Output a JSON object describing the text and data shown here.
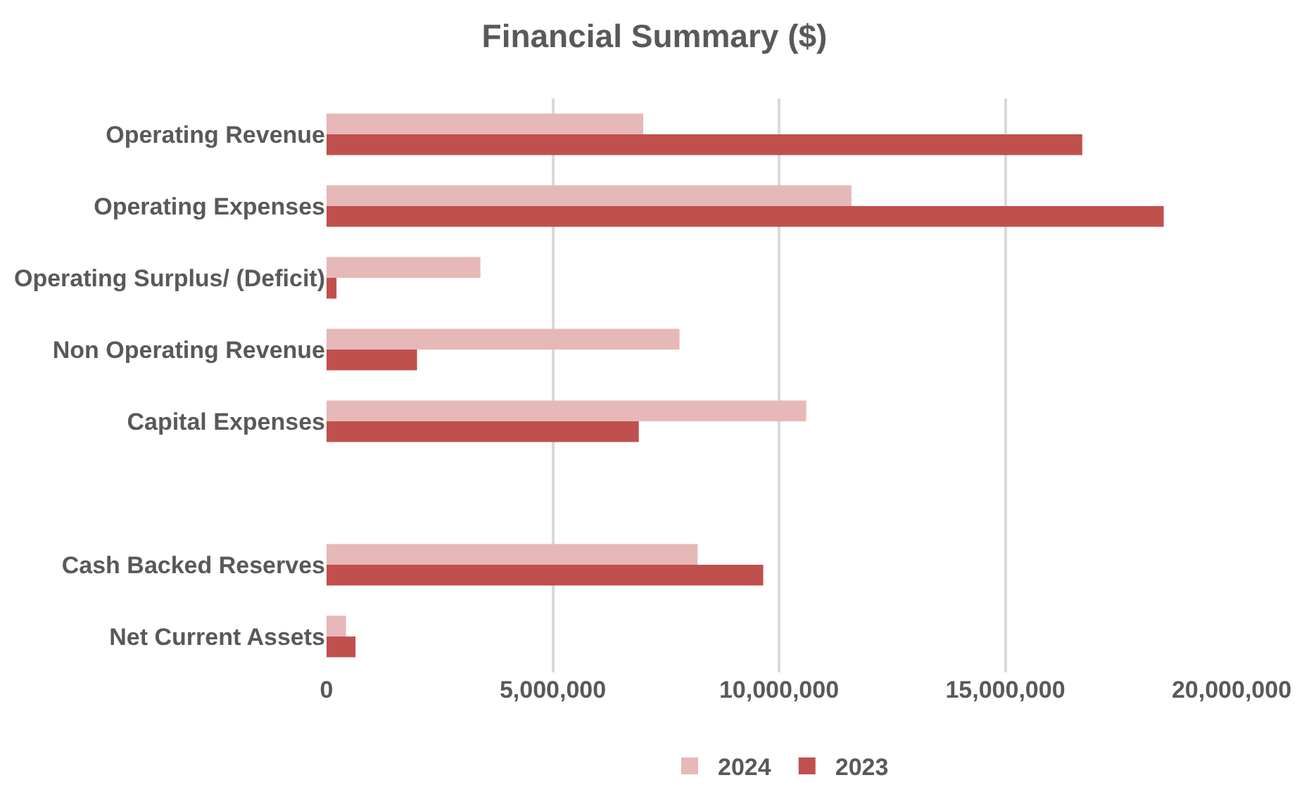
{
  "chart_data": {
    "type": "bar",
    "orientation": "horizontal",
    "title": "Financial Summary ($)",
    "categories": [
      "Operating Revenue",
      "Operating Expenses",
      "Operating Surplus/ (Deficit)",
      "Non Operating Revenue",
      "Capital Expenses",
      null,
      "Cash Backed Reserves",
      "Net Current Assets"
    ],
    "series": [
      {
        "name": "2024",
        "color": "#e6b8b7",
        "values": [
          7000000,
          11600000,
          3400000,
          7800000,
          10600000,
          null,
          8200000,
          430000
        ]
      },
      {
        "name": "2023",
        "color": "#c0504d",
        "values": [
          16700000,
          18500000,
          220000,
          2000000,
          6900000,
          null,
          9650000,
          640000
        ]
      }
    ],
    "xlim": [
      0,
      20000000
    ],
    "xticks": [
      {
        "value": 0,
        "label": "0"
      },
      {
        "value": 5000000,
        "label": "5,000,000"
      },
      {
        "value": 10000000,
        "label": "10,000,000"
      },
      {
        "value": 15000000,
        "label": "15,000,000"
      },
      {
        "value": 20000000,
        "label": "20,000,000"
      }
    ],
    "grid": "x",
    "legend": "bottom"
  }
}
